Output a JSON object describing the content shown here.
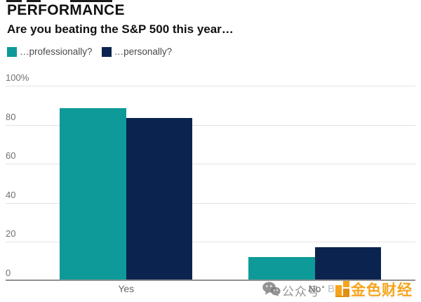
{
  "header": {
    "kicker": "PERFORMANCE",
    "title": "Are you beating the S&P 500 this year…"
  },
  "legend": [
    {
      "label": "…professionally?",
      "color": "#0d9a98"
    },
    {
      "label": "…personally?",
      "color": "#0b234f"
    }
  ],
  "chart_data": {
    "type": "bar",
    "title": "PERFORMANCE",
    "subtitle": "Are you beating the S&P 500 this year…",
    "categories": [
      "Yes",
      "No"
    ],
    "series": [
      {
        "name": "…professionally?",
        "color": "#0d9a98",
        "values": [
          88,
          12
        ]
      },
      {
        "name": "…personally?",
        "color": "#0b234f",
        "values": [
          83,
          17
        ]
      }
    ],
    "xlabel": "",
    "ylabel": "",
    "ylim": [
      0,
      100
    ],
    "yticks": [
      {
        "value": 0,
        "label": "0"
      },
      {
        "value": 20,
        "label": "20"
      },
      {
        "value": 40,
        "label": "40"
      },
      {
        "value": 60,
        "label": "60"
      },
      {
        "value": 80,
        "label": "80"
      },
      {
        "value": 100,
        "label": "100%"
      }
    ],
    "grid": "horizontal",
    "legend_position": "top-left"
  },
  "colors": {
    "teal": "#0d9a98",
    "navy": "#0b234f",
    "axis_line": "#919191",
    "gridline": "#e3e3e3",
    "tick_text": "#6f6f6f",
    "watermark_orange": "#f7a41d",
    "watermark_gray": "#767676"
  },
  "watermark": {
    "wechat_label": "公众号",
    "separator": "·",
    "brand": "金色财经",
    "faint_text": "Ba"
  }
}
